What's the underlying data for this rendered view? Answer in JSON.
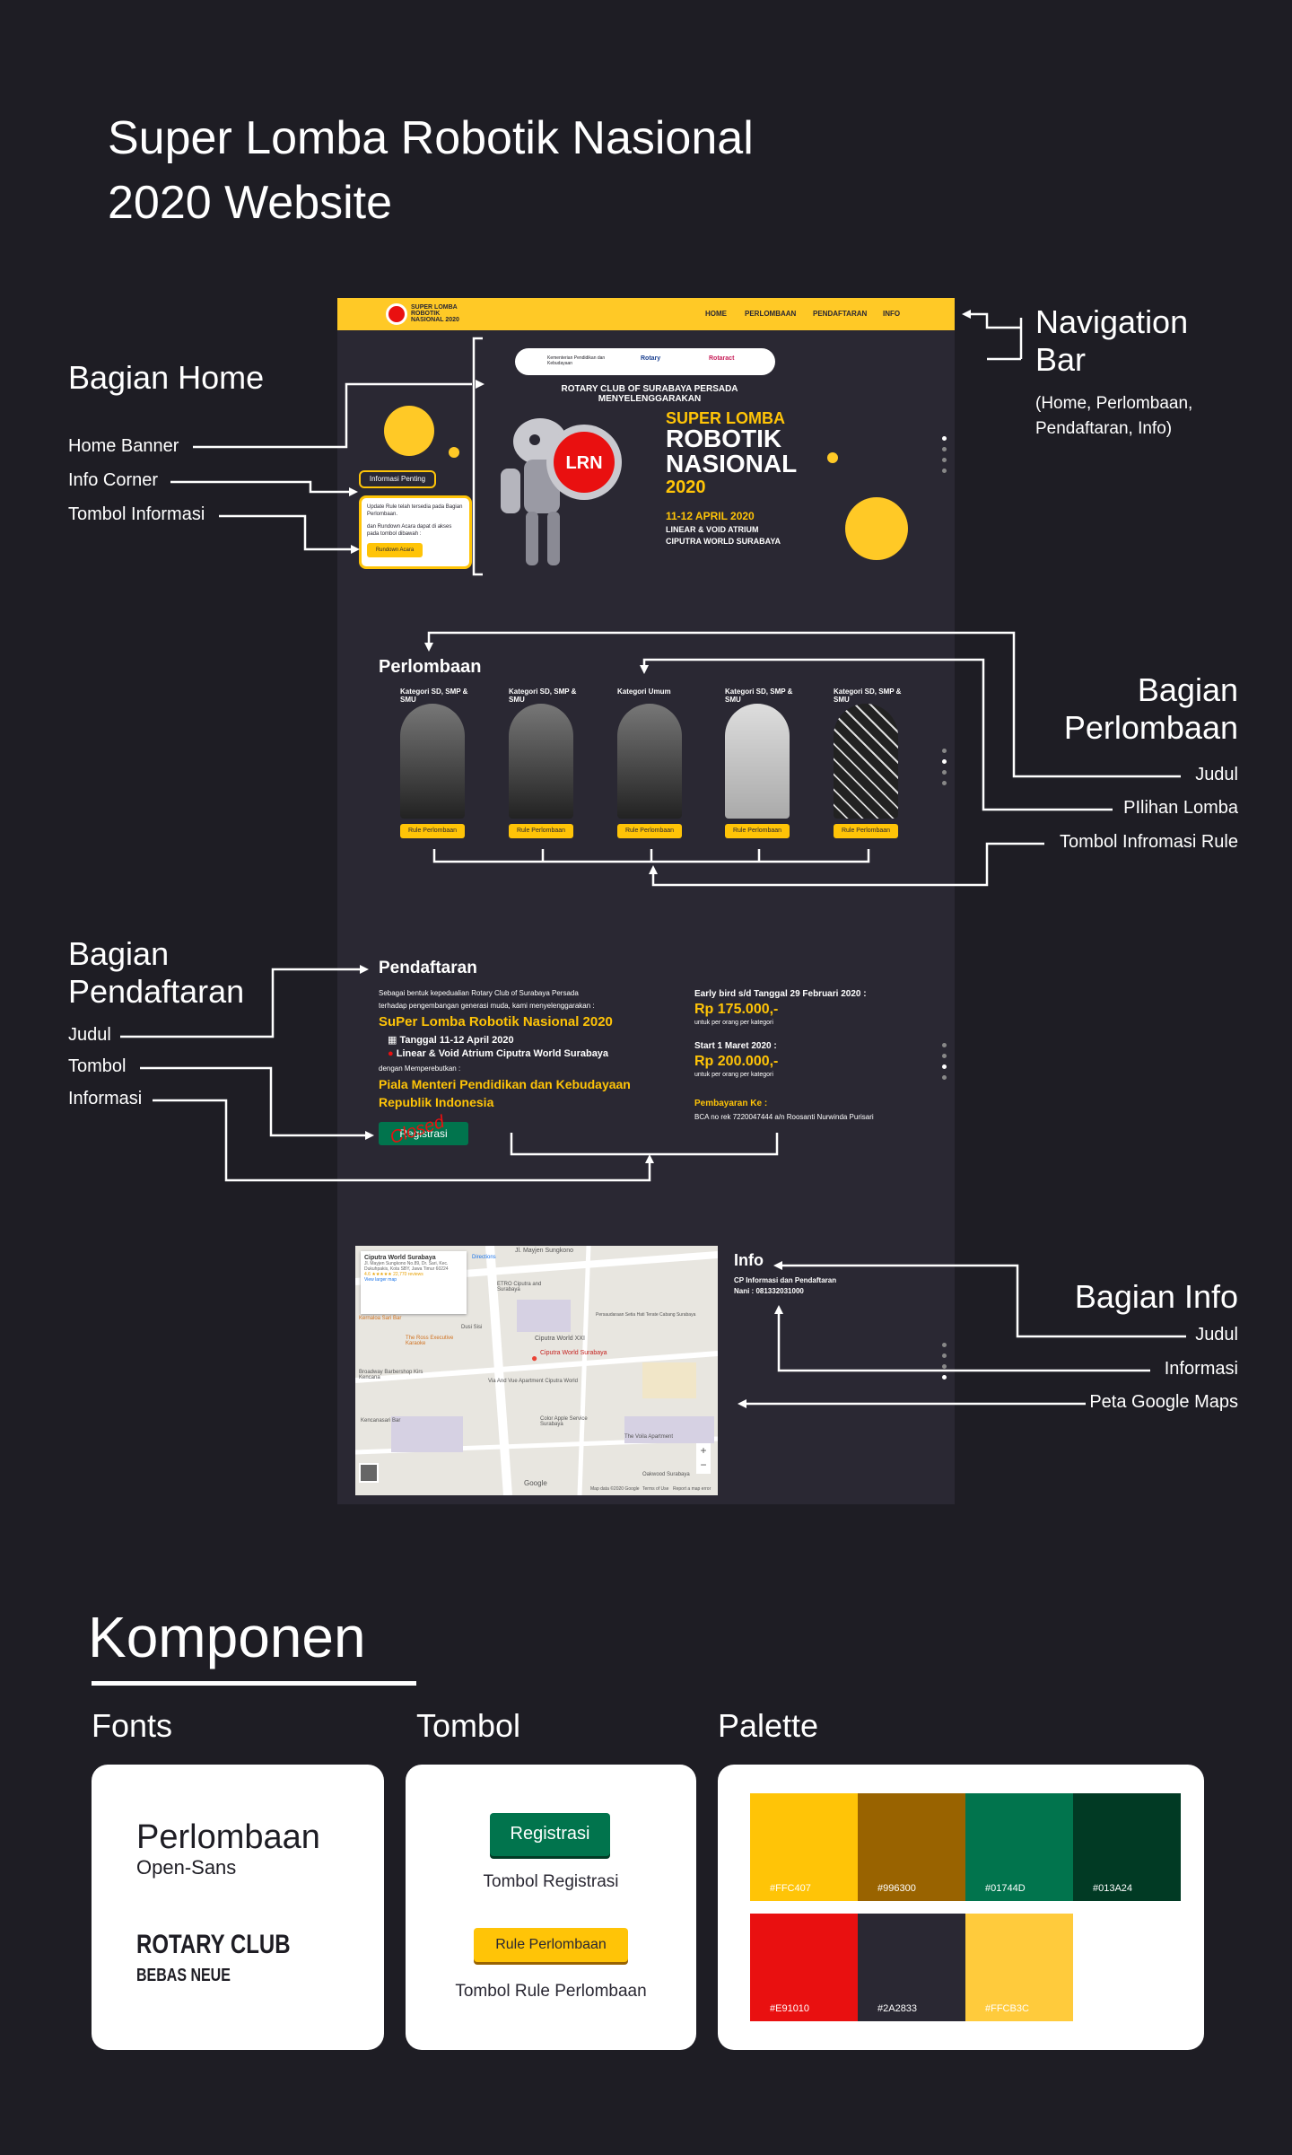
{
  "page_title": "Super Lomba Robotik Nasional 2020 Website",
  "site": {
    "logo_text": "SUPER LOMBA ROBOTIK NASIONAL 2020",
    "nav": [
      "HOME",
      "PERLOMBAAN",
      "PENDAFTARAN",
      "INFO"
    ],
    "home": {
      "sponsor_logos": [
        "Kementerian Pendidikan dan Kebudayaan",
        "Rotary",
        "Rotaract"
      ],
      "organizer": "ROTARY CLUB OF SURABAYA PERSADA MENYELENGGARAKAN",
      "event_line1": "SUPER LOMBA",
      "event_line2": "ROBOTIK",
      "event_line3": "NASIONAL",
      "event_year": "2020",
      "event_date": "11-12 APRIL 2020",
      "venue_line1": "LINEAR & VOID ATRIUM",
      "venue_line2": "CIPUTRA WORLD SURABAYA",
      "badge_text": "LRN",
      "info_title": "Informasi Penting",
      "info_text1": "Update Rule telah tersedia pada Bagian Perlombaan.",
      "info_text2": "dan Rundown Acara dapat di akses pada tombol dibawah :",
      "info_button": "Rundown Acara"
    },
    "perlombaan": {
      "title": "Perlombaan",
      "categories": [
        "Kategori SD, SMP & SMU",
        "Kategori SD, SMP & SMU",
        "Kategori Umum",
        "Kategori SD, SMP & SMU",
        "Kategori SD, SMP & SMU"
      ],
      "button_label": "Rule Perlombaan"
    },
    "pendaftaran": {
      "title": "Pendaftaran",
      "intro1": "Sebagai bentuk kepedualian Rotary Club of Surabaya Persada",
      "intro2": "terhadap pengembangan generasi muda, kami menyelenggarakan :",
      "event_name": "SuPer Lomba Robotik Nasional 2020",
      "date": "Tanggal 11-12 April 2020",
      "venue": "Linear & Void Atrium Ciputra World Surabaya",
      "compete_for": "dengan Memperebutkan :",
      "trophy": "Piala Menteri Pendidikan dan Kebudayaan Republik Indonesia",
      "button": "Registrasi",
      "closed_stamp": "Closed",
      "early_bird": "Early bird s/d Tanggal 29 Februari 2020 :",
      "early_price": "Rp 175.000,-",
      "per_category": "untuk per orang per kategori",
      "start": "Start 1 Maret 2020 :",
      "start_price": "Rp 200.000,-",
      "per_category2": "untuk per orang per kategori",
      "payment_title": "Pembayaran Ke :",
      "payment_detail": "BCA no rek 7220047444 a/n Roosanti Nurwinda Purisari"
    },
    "info": {
      "title": "Info",
      "cp": "CP Informasi dan Pendaftaran",
      "phone": "Nani : 081332031000",
      "map_place": "Ciputra World Surabaya",
      "map_address": "Jl. Mayjen Sungkono No.89, Dr. Sari, Kec. Dukuhpakis, Kota SBY, Jawa Timur 60224",
      "map_rating": "4.6 ★★★★★ 22,770 reviews",
      "map_link": "View larger map",
      "map_labels": [
        "Jl. Mayjen Sungkono",
        "Ciputra World XXI",
        "Ciputra World Surabaya",
        "Via And Vue Apartment Ciputra World",
        "Kencanasari Bar",
        "The Voila Apartment",
        "Oakwood Surabaya",
        "Persaudaraan Setia Hati Terate Cabang Surabaya",
        "Color Apple Service Surabaya",
        "Broadway Barbershop Kirs Kencana",
        "The Ross Executive Karaoke",
        "Dusi Sisi",
        "Kernaloa Sari Bar",
        "ETRO Ciputra and Surabaya",
        "Directions",
        "Google",
        "Map data ©2020 Google",
        "Terms of Use",
        "Report a map error"
      ]
    }
  },
  "annotations": {
    "home_section": "Bagian Home",
    "home_items": [
      "Home Banner",
      "Info Corner",
      "Tombol Informasi"
    ],
    "navbar": "Navigation Bar",
    "navbar_detail": "(Home, Perlombaan, Pendaftaran, Info)",
    "perlombaan_section": "Bagian Perlombaan",
    "perlombaan_items": [
      "Judul",
      "PIlihan Lomba",
      "Tombol Infromasi Rule"
    ],
    "pendaftaran_section": "Bagian Pendaftaran",
    "pendaftaran_items": [
      "Judul",
      "Tombol",
      "Informasi"
    ],
    "info_section": "Bagian Info",
    "info_items": [
      "Judul",
      "Informasi",
      "Peta Google Maps"
    ]
  },
  "components": {
    "title": "Komponen",
    "fonts_head": "Fonts",
    "font1_sample": "Perlombaan",
    "font1_name": "Open-Sans",
    "font2_sample": "ROTARY CLUB",
    "font2_name": "BEBAS NEUE",
    "buttons_head": "Tombol",
    "btn1": "Registrasi",
    "btn1_caption": "Tombol Registrasi",
    "btn2": "Rule Perlombaan",
    "btn2_caption": "Tombol Rule Perlombaan",
    "palette_head": "Palette",
    "palette": [
      "#FFC407",
      "#996300",
      "#01744D",
      "#013A24",
      "#E91010",
      "#2A2833",
      "#FFCB3C"
    ]
  },
  "colors": {
    "accent": "#FFC407",
    "brand_red": "#E91010",
    "green": "#01744D",
    "dark": "#2A2833",
    "bg": "#1E1D24"
  }
}
